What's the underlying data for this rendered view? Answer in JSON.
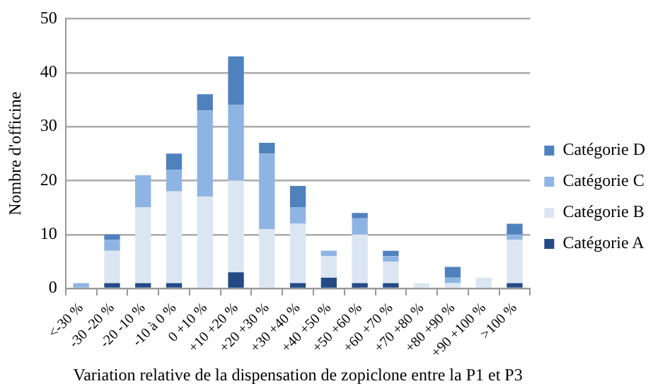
{
  "chart_data": {
    "type": "bar",
    "stacked": true,
    "xlabel": "Variation relative de la dispensation de zopiclone entre la P1 et P3",
    "ylabel": "Nombre d'officine",
    "categories": [
      "<-30 %",
      "-30 -20 %",
      "-20 -10 %",
      "-10 à 0 %",
      "0 +10 %",
      "+10 +20 %",
      "+20 +30 %",
      "+30 +40 %",
      "+40 +50 %",
      "+50 +60 %",
      "+60 +70 %",
      "+70 +80 %",
      "+80 +90 %",
      "+90 +100 %",
      ">100 %"
    ],
    "series": [
      {
        "name": "Catégorie A",
        "color": "#244a85",
        "values": [
          0,
          1,
          1,
          1,
          0,
          3,
          0,
          1,
          2,
          1,
          1,
          0,
          0,
          0,
          1
        ]
      },
      {
        "name": "Catégorie B",
        "color": "#dce6f2",
        "values": [
          0,
          6,
          14,
          17,
          17,
          17,
          11,
          11,
          4,
          9,
          4,
          1,
          1,
          2,
          8
        ]
      },
      {
        "name": "Catégorie C",
        "color": "#8eb4e3",
        "values": [
          1,
          2,
          6,
          4,
          16,
          14,
          14,
          3,
          1,
          3,
          1,
          0,
          1,
          0,
          1
        ]
      },
      {
        "name": "Catégorie D",
        "color": "#4f81bd",
        "values": [
          0,
          1,
          0,
          3,
          3,
          9,
          2,
          4,
          0,
          1,
          1,
          0,
          2,
          0,
          2
        ]
      }
    ],
    "ylim": [
      0,
      50
    ],
    "yticks": [
      0,
      10,
      20,
      30,
      40,
      50
    ],
    "grid": "y",
    "legend": "right"
  }
}
